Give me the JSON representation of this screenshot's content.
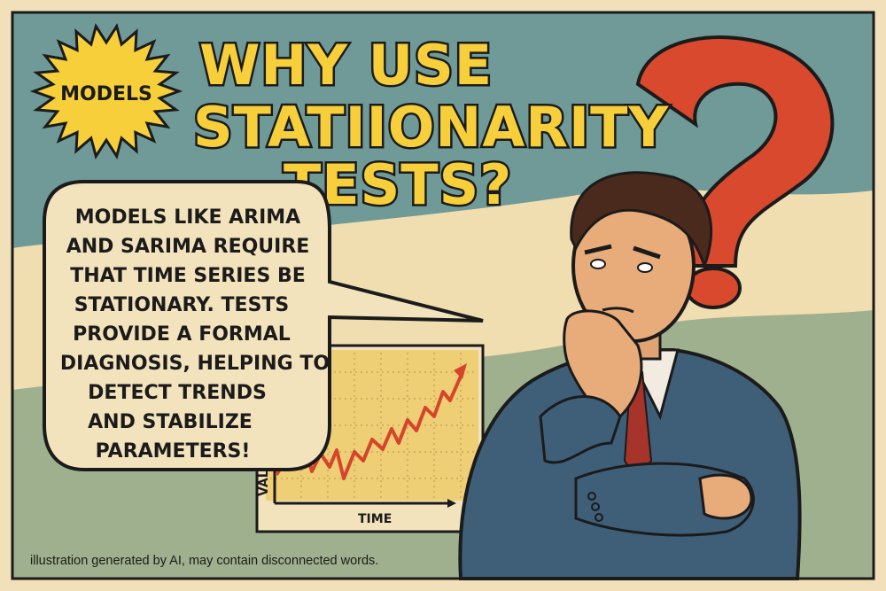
{
  "badge": {
    "label": "MODELS"
  },
  "title": {
    "lines": [
      "WHY USE",
      "STATIIONARITY",
      "TESTS?"
    ]
  },
  "speech_bubble": {
    "lines": [
      "MODELS LIKE ARIMA",
      "AND SARIMA REQUIRE",
      "THAT TIME SERIES BE",
      "STATIONARY. TESTS",
      "PROVIDE A FORMAL",
      "DIAGNOSIS, HELPING TO",
      "DETECT TRENDS",
      "AND STABILIZE",
      "PARAMETERS!"
    ]
  },
  "mini_chart": {
    "xlabel": "TIME",
    "ylabel": "VALUE",
    "trend": "rising zigzag",
    "line_color": "#d5452b"
  },
  "caption": "illustration generated by AI, may contain disconnected words.",
  "colors": {
    "background": "#f1e0b9",
    "teal_band": "#6f9a98",
    "sage_band": "#9fb08f",
    "title_yellow": "#f6cf3a",
    "question_mark_red": "#d9492e",
    "suit_blue": "#3f5f78"
  }
}
